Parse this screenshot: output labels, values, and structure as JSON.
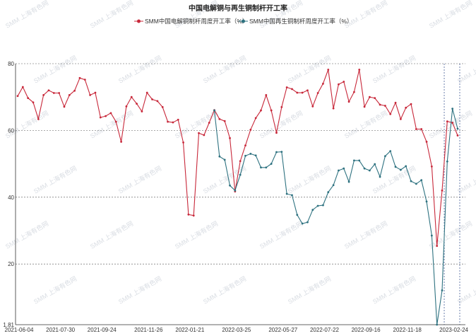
{
  "chart_data": {
    "type": "line",
    "title": "中国电解铜与再生铜制杆开工率",
    "ylim": [
      1.81,
      80
    ],
    "yticks": [
      1.81,
      20,
      40,
      60,
      80
    ],
    "xticks": [
      "2021-06-04",
      "2021-07-30",
      "2021-09-24",
      "2021-11-26",
      "2022-01-21",
      "2022-03-25",
      "2022-05-27",
      "2022-07-22",
      "2022-09-16",
      "2022-11-18",
      "2023-02-24"
    ],
    "grid": true,
    "legend_position": "top",
    "watermark": "SMM 上海有色网",
    "series": [
      {
        "name": "SMM中国电解铜制杆周度开工率（%）",
        "color": "#c8283a",
        "values": [
          70.3,
          73.0,
          69.7,
          68.4,
          63.4,
          70.6,
          72.0,
          71.2,
          71.2,
          67.1,
          70.6,
          71.9,
          75.7,
          75.2,
          70.6,
          71.3,
          63.9,
          64.3,
          65.2,
          62.6,
          56.6,
          67.2,
          70.0,
          68.0,
          65.7,
          71.3,
          69.3,
          68.8,
          67.0,
          62.6,
          62.4,
          63.2,
          56.4,
          34.8,
          34.5,
          59.2,
          58.6,
          62.3,
          66.1,
          63.4,
          62.8,
          57.7,
          41.7,
          50.8,
          55.5,
          60.2,
          63.7,
          66.0,
          70.6,
          66.0,
          59.3,
          67.0,
          72.9,
          72.4,
          71.3,
          71.3,
          72.0,
          67.2,
          71.2,
          74.0,
          78.2,
          66.6,
          73.8,
          74.6,
          68.6,
          71.5,
          78.2,
          67.1,
          70.0,
          69.7,
          67.7,
          67.4,
          64.9,
          68.3,
          63.4,
          66.8,
          67.9,
          60.4,
          60.4,
          56.6,
          49.2,
          25.4,
          42.0,
          62.7,
          62.3,
          58.5
        ]
      },
      {
        "name": "SMM中国再生铜制杆周度开工率（%）",
        "color": "#2e7280",
        "values": [
          null,
          null,
          null,
          null,
          null,
          null,
          null,
          null,
          null,
          null,
          null,
          null,
          null,
          null,
          null,
          null,
          null,
          null,
          null,
          null,
          null,
          null,
          null,
          null,
          null,
          null,
          null,
          null,
          null,
          null,
          null,
          null,
          null,
          null,
          null,
          null,
          null,
          null,
          66.0,
          52.2,
          51.2,
          43.5,
          42.0,
          46.7,
          52.4,
          53.0,
          52.5,
          48.9,
          48.9,
          50.0,
          53.5,
          53.6,
          41.0,
          40.6,
          34.7,
          32.1,
          32.5,
          36.2,
          37.4,
          37.6,
          41.5,
          43.6,
          48.0,
          48.6,
          44.6,
          51.0,
          51.0,
          48.6,
          48.0,
          49.9,
          46.1,
          52.3,
          53.8,
          49.1,
          48.2,
          49.3,
          44.8,
          44.0,
          45.1,
          38.7,
          28.5,
          1.81,
          12.1,
          50.7,
          66.5,
          60.5
        ]
      }
    ]
  }
}
